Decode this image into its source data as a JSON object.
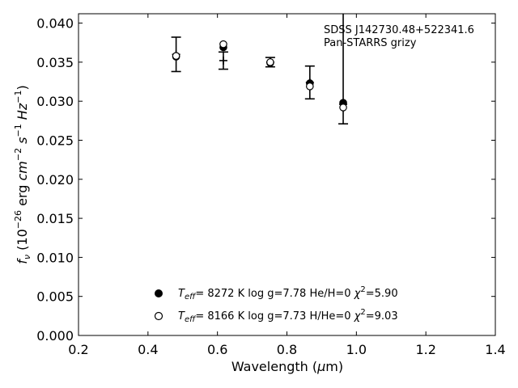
{
  "chart_data": {
    "type": "scatter",
    "xlabel": "Wavelength (μm)",
    "ylabel": "f_ν (10^-26 erg cm^-2 s^-1 Hz^-1)",
    "xlim": [
      0.2,
      1.4
    ],
    "ylim": [
      0.0,
      0.0412
    ],
    "x_ticks": [
      "0.2",
      "0.4",
      "0.6",
      "0.8",
      "1.0",
      "1.2",
      "1.4"
    ],
    "y_ticks": [
      "0.000",
      "0.005",
      "0.010",
      "0.015",
      "0.020",
      "0.025",
      "0.030",
      "0.035",
      "0.040"
    ],
    "annotations": [
      "SDSS J142730.48+522341.6",
      "Pan-STARRS grizy"
    ],
    "grid": false,
    "legend_placement": "bottom-center",
    "observed": {
      "marker": "plus",
      "x": [
        0.481,
        0.617,
        0.752,
        0.866,
        0.962
      ],
      "y": [
        0.036,
        0.0352,
        0.035,
        0.0324,
        0.0296
      ],
      "yerr": [
        0.0022,
        0.0011,
        0.0006,
        0.0021,
        0.0025
      ],
      "yerr_up": [
        0.0022,
        0.0011,
        0.0006,
        0.0021,
        0.013
      ]
    },
    "series": [
      {
        "name": "T_eff= 8272 K log g=7.78 He/H=0 χ²=5.90",
        "marker": "filled-circle",
        "x": [
          0.481,
          0.617,
          0.752,
          0.866,
          0.962
        ],
        "y": [
          0.0357,
          0.0369,
          0.0349,
          0.0323,
          0.0298
        ]
      },
      {
        "name": "T_eff= 8166 K log g=7.73 H/He=0 χ²=9.03",
        "marker": "open-circle",
        "x": [
          0.481,
          0.617,
          0.752,
          0.866,
          0.962
        ],
        "y": [
          0.0358,
          0.0373,
          0.035,
          0.0319,
          0.0292
        ]
      }
    ]
  },
  "legend": {
    "row1": {
      "teff": "8272 K",
      "logg": "log g=7.78",
      "comp": "He/H=0",
      "chi": "=5.90"
    },
    "row2": {
      "teff": "8166 K",
      "logg": "log g=7.73",
      "comp": "H/He=0",
      "chi": "=9.03"
    }
  },
  "colors": {
    "axes": "#000000",
    "markers": "#000000",
    "background": "#ffffff"
  }
}
